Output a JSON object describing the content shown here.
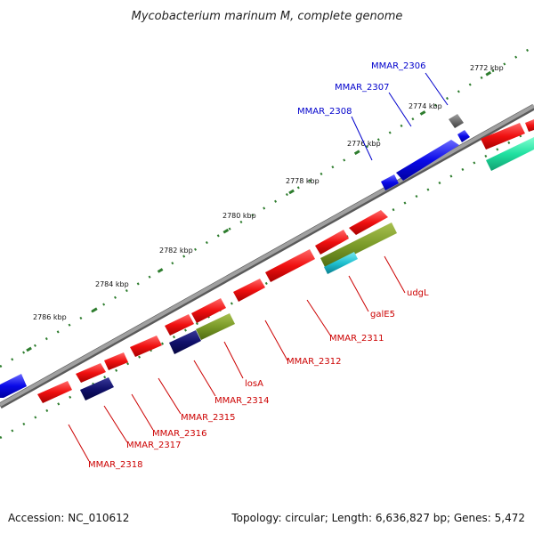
{
  "title": "Mycobacterium marinum M, complete genome",
  "footer": {
    "accession": "Accession: NC_010612",
    "summary": "Topology: circular; Length: 6,636,827 bp; Genes: 5,472"
  },
  "colors": {
    "forward_label": "#0000cc",
    "reverse_label": "#cc0000",
    "backbone": "#888888",
    "ticks": "#2e7d2e"
  },
  "kbp_labels": [
    "2772 kbp",
    "2774 kbp",
    "2776 kbp",
    "2778 kbp",
    "2780 kbp",
    "2782 kbp",
    "2784 kbp",
    "2786 kbp"
  ],
  "genes": [
    {
      "id": "MMAR_2306",
      "label": "MMAR_2306",
      "strand": "forward"
    },
    {
      "id": "MMAR_2307",
      "label": "MMAR_2307",
      "strand": "forward"
    },
    {
      "id": "MMAR_2308",
      "label": "MMAR_2308",
      "strand": "forward"
    },
    {
      "id": "udgL",
      "label": "udgL",
      "strand": "reverse"
    },
    {
      "id": "galE5",
      "label": "galE5",
      "strand": "reverse"
    },
    {
      "id": "MMAR_2311",
      "label": "MMAR_2311",
      "strand": "reverse"
    },
    {
      "id": "MMAR_2312",
      "label": "MMAR_2312",
      "strand": "reverse"
    },
    {
      "id": "losA",
      "label": "losA",
      "strand": "reverse"
    },
    {
      "id": "MMAR_2314",
      "label": "MMAR_2314",
      "strand": "reverse"
    },
    {
      "id": "MMAR_2315",
      "label": "MMAR_2315",
      "strand": "reverse"
    },
    {
      "id": "MMAR_2316",
      "label": "MMAR_2316",
      "strand": "reverse"
    },
    {
      "id": "MMAR_2317",
      "label": "MMAR_2317",
      "strand": "reverse"
    },
    {
      "id": "MMAR_2318",
      "label": "MMAR_2318",
      "strand": "reverse"
    }
  ]
}
